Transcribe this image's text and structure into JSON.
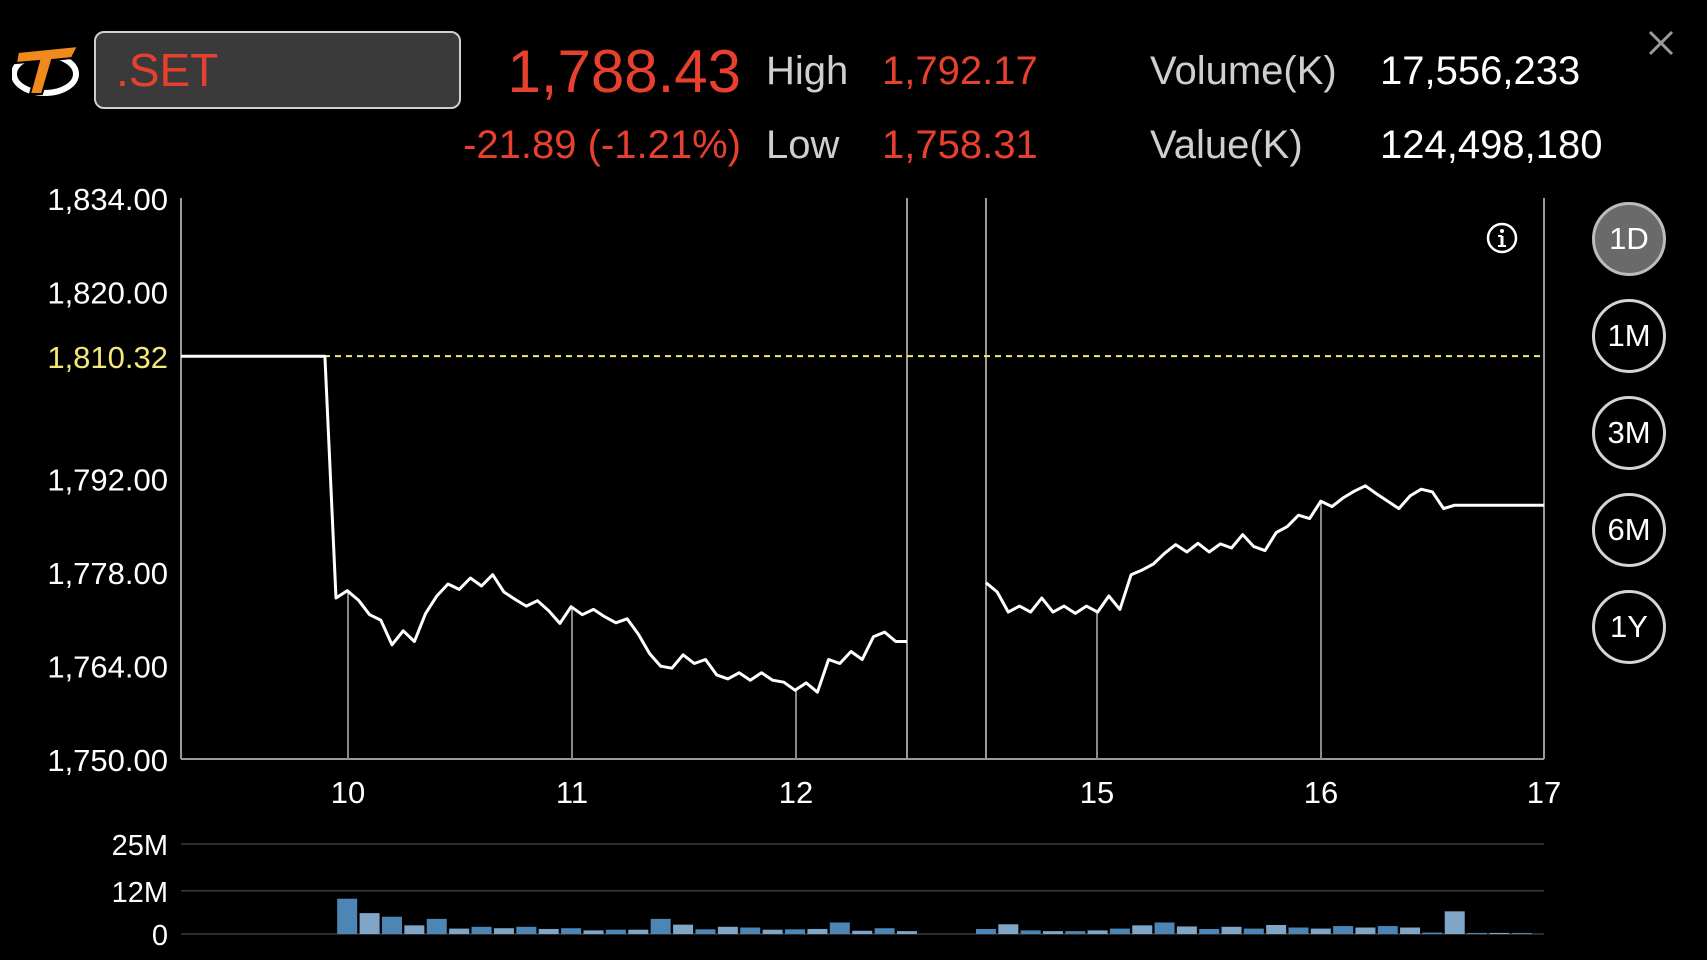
{
  "header": {
    "logo": "settrade-logo",
    "symbol": ".SET",
    "last": "1,788.43",
    "change": "-21.89 (-1.21%)",
    "high_label": "High",
    "high": "1,792.17",
    "low_label": "Low",
    "low": "1,758.31",
    "volume_label": "Volume(K)",
    "volume": "17,556,233",
    "value_label": "Value(K)",
    "value": "124,498,180",
    "close_icon": "close-icon"
  },
  "colors": {
    "negative": "#e8402f",
    "reference": "#f3e97a",
    "volume_bar": "#4d86b5",
    "volume_bar_light": "#7fa6c6",
    "axis": "#9a9a9a"
  },
  "periods": [
    {
      "label": "1D",
      "active": true
    },
    {
      "label": "1M",
      "active": false
    },
    {
      "label": "3M",
      "active": false
    },
    {
      "label": "6M",
      "active": false
    },
    {
      "label": "1Y",
      "active": false
    }
  ],
  "info_icon": "info-icon",
  "chart_data": [
    {
      "type": "line",
      "title": "",
      "ylim": [
        1750,
        1834
      ],
      "y_ticks": [
        "1,834.00",
        "1,820.00",
        "1,792.00",
        "1,778.00",
        "1,764.00",
        "1,750.00"
      ],
      "reference_label": "1,810.32",
      "reference_value": 1810.32,
      "x_ticks": [
        "10",
        "11",
        "12",
        "15",
        "16",
        "17"
      ],
      "grid": false,
      "session_break": {
        "start": 12.5,
        "end": 14.5
      },
      "series": [
        {
          "x": [
            9.25,
            9.92,
            9.95,
            10.0,
            10.05,
            10.1,
            10.15,
            10.2,
            10.25,
            10.3,
            10.35,
            10.4,
            10.45,
            10.5,
            10.55,
            10.6,
            10.65,
            10.7,
            10.75,
            10.8,
            10.85,
            10.9,
            10.95,
            11.0,
            11.05,
            11.1,
            11.15,
            11.2,
            11.25,
            11.3,
            11.35,
            11.4,
            11.45,
            11.5,
            11.55,
            11.6,
            11.65,
            11.7,
            11.75,
            11.8,
            11.85,
            11.9,
            11.95,
            12.0,
            12.05,
            12.1,
            12.15,
            12.2,
            12.25,
            12.3,
            12.35,
            12.4,
            12.45,
            12.5
          ],
          "y": [
            1810.3,
            1810.3,
            1774.1,
            1775.2,
            1773.8,
            1771.6,
            1770.8,
            1767.1,
            1769.2,
            1767.6,
            1771.8,
            1774.4,
            1776.2,
            1775.4,
            1777.1,
            1775.9,
            1777.6,
            1775.0,
            1773.9,
            1772.9,
            1773.7,
            1772.2,
            1770.3,
            1772.8,
            1771.6,
            1772.4,
            1771.3,
            1770.4,
            1771.0,
            1768.7,
            1765.8,
            1763.9,
            1763.6,
            1765.6,
            1764.3,
            1764.9,
            1762.6,
            1762.0,
            1762.9,
            1761.8,
            1762.9,
            1761.8,
            1761.5,
            1760.3,
            1761.4,
            1760.0,
            1764.9,
            1764.3,
            1766.1,
            1764.9,
            1768.3,
            1769.0,
            1767.6,
            1767.6
          ]
        },
        {
          "x": [
            14.5,
            14.55,
            14.6,
            14.65,
            14.7,
            14.75,
            14.8,
            14.85,
            14.9,
            14.95,
            15.0,
            15.05,
            15.1,
            15.15,
            15.2,
            15.25,
            15.3,
            15.35,
            15.4,
            15.45,
            15.5,
            15.55,
            15.6,
            15.65,
            15.7,
            15.75,
            15.8,
            15.85,
            15.9,
            15.95,
            16.0,
            16.05,
            16.1,
            16.15,
            16.2,
            16.25,
            16.3,
            16.35,
            16.4,
            16.45,
            16.5,
            16.55,
            16.6,
            16.65,
            16.7,
            16.75,
            16.8,
            16.85,
            16.9,
            16.95,
            17.0
          ],
          "y": [
            1776.4,
            1775.0,
            1772.0,
            1772.9,
            1772.0,
            1774.1,
            1772.0,
            1772.9,
            1771.8,
            1772.9,
            1772.0,
            1774.4,
            1772.4,
            1777.6,
            1778.3,
            1779.2,
            1780.8,
            1782.1,
            1781.0,
            1782.3,
            1781.0,
            1782.2,
            1781.6,
            1783.6,
            1781.8,
            1781.2,
            1783.9,
            1784.8,
            1786.5,
            1786.0,
            1788.6,
            1787.8,
            1789.1,
            1790.1,
            1790.9,
            1789.7,
            1788.6,
            1787.5,
            1789.4,
            1790.4,
            1790.0,
            1787.5,
            1788.0,
            1788.0,
            1788.0,
            1788.0,
            1788.0,
            1788.0,
            1788.0,
            1788.0,
            1788.0
          ]
        }
      ]
    },
    {
      "type": "bar",
      "title": "",
      "ylim": [
        0,
        25
      ],
      "y_ticks": [
        "25M",
        "12M",
        "0"
      ],
      "series": [
        {
          "name": "",
          "x": [
            10.0,
            10.1,
            10.2,
            10.3,
            10.4,
            10.5,
            10.6,
            10.7,
            10.8,
            10.9,
            11.0,
            11.1,
            11.2,
            11.3,
            11.4,
            11.5,
            11.6,
            11.7,
            11.8,
            11.9,
            12.0,
            12.1,
            12.2,
            12.3,
            12.4,
            12.5,
            14.5,
            14.6,
            14.7,
            14.8,
            14.9,
            15.0,
            15.1,
            15.2,
            15.3,
            15.4,
            15.5,
            15.6,
            15.7,
            15.8,
            15.9,
            16.0,
            16.1,
            16.2,
            16.3,
            16.4,
            16.5,
            16.6,
            16.7,
            16.8,
            16.9
          ],
          "values": [
            9.8,
            5.8,
            4.8,
            2.4,
            4.2,
            1.5,
            2.0,
            1.6,
            2.0,
            1.4,
            1.6,
            1.0,
            1.2,
            1.2,
            4.2,
            2.6,
            1.3,
            2.0,
            1.8,
            1.2,
            1.3,
            1.4,
            3.2,
            0.9,
            1.6,
            0.8,
            1.4,
            2.7,
            1.0,
            0.8,
            0.8,
            1.0,
            1.5,
            2.4,
            3.2,
            2.1,
            1.4,
            2.0,
            1.5,
            2.5,
            1.8,
            1.5,
            2.2,
            1.8,
            2.2,
            1.8,
            0.4,
            6.3,
            0.3,
            0.3,
            0.3
          ]
        }
      ]
    }
  ]
}
